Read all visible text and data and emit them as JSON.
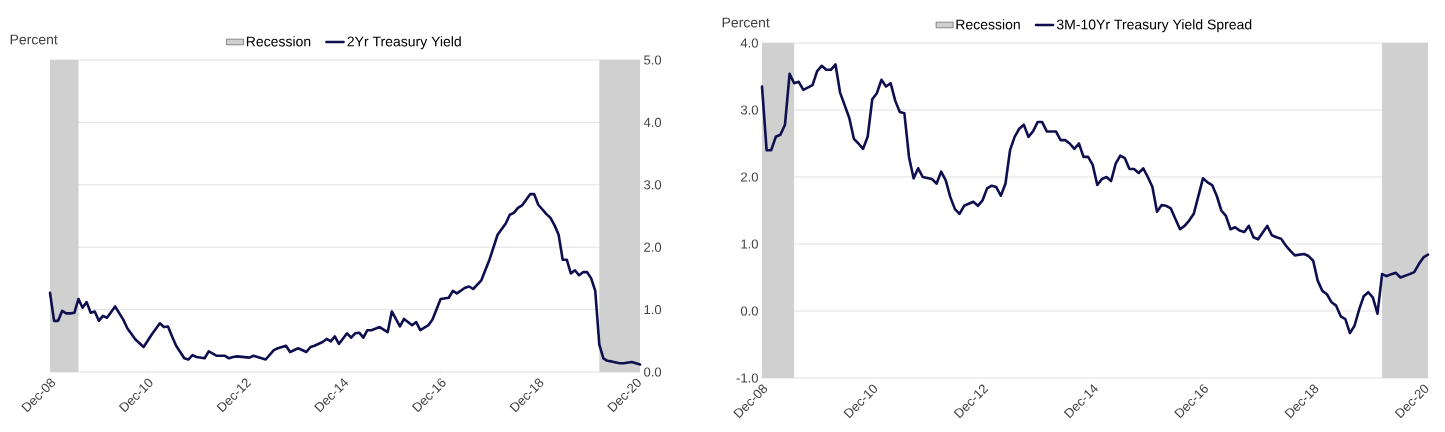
{
  "chart_data": [
    {
      "type": "line",
      "ylabel": "Percent",
      "legend": "top",
      "grid": "y",
      "xlim": [
        "2008-12",
        "2021-01"
      ],
      "xticks": [
        {
          "value": "2008-12",
          "label": "Dec-08"
        },
        {
          "value": "2010-12",
          "label": "Dec-10"
        },
        {
          "value": "2012-12",
          "label": "Dec-12"
        },
        {
          "value": "2014-12",
          "label": "Dec-14"
        },
        {
          "value": "2016-12",
          "label": "Dec-16"
        },
        {
          "value": "2018-12",
          "label": "Dec-18"
        },
        {
          "value": "2020-12",
          "label": "Dec-20"
        }
      ],
      "ylim": [
        0,
        5
      ],
      "yticks": [
        {
          "value": 0,
          "label": "0.0"
        },
        {
          "value": 1,
          "label": "1.0"
        },
        {
          "value": 2,
          "label": "2.0"
        },
        {
          "value": 3,
          "label": "3.0"
        },
        {
          "value": 4,
          "label": "4.0"
        },
        {
          "value": 5,
          "label": "5.0"
        }
      ],
      "bands": [
        {
          "axis": "x",
          "from": "2008-12",
          "to": "2009-07",
          "label": "Recession",
          "color": "#d0d0d0"
        },
        {
          "axis": "x",
          "from": "2020-03",
          "to": "2021-01",
          "color": "#d0d0d0"
        }
      ],
      "series": [
        {
          "name": "2Yr Treasury Yield",
          "color": "#0f0f4f",
          "x": [
            "2008-12",
            "2009-01",
            "2009-02",
            "2009-03",
            "2009-04",
            "2009-05",
            "2009-06",
            "2009-07",
            "2009-08",
            "2009-09",
            "2009-10",
            "2009-11",
            "2009-12",
            "2010-01",
            "2010-02",
            "2010-04",
            "2010-06",
            "2010-07",
            "2010-09",
            "2010-11",
            "2011-01",
            "2011-03",
            "2011-04",
            "2011-05",
            "2011-06",
            "2011-07",
            "2011-09",
            "2011-10",
            "2011-11",
            "2011-12",
            "2012-02",
            "2012-03",
            "2012-05",
            "2012-07",
            "2012-08",
            "2012-09",
            "2012-10",
            "2013-01",
            "2013-02",
            "2013-05",
            "2013-07",
            "2013-08",
            "2013-10",
            "2013-11",
            "2014-01",
            "2014-03",
            "2014-04",
            "2014-05",
            "2014-07",
            "2014-08",
            "2014-09",
            "2014-10",
            "2014-11",
            "2015-01",
            "2015-02",
            "2015-03",
            "2015-04",
            "2015-05",
            "2015-06",
            "2015-07",
            "2015-09",
            "2015-11",
            "2015-12",
            "2016-01",
            "2016-02",
            "2016-03",
            "2016-05",
            "2016-06",
            "2016-07",
            "2016-09",
            "2016-10",
            "2016-12",
            "2017-02",
            "2017-03",
            "2017-04",
            "2017-06",
            "2017-07",
            "2017-08",
            "2017-10",
            "2017-12",
            "2018-02",
            "2018-04",
            "2018-05",
            "2018-06",
            "2018-07",
            "2018-08",
            "2018-10",
            "2018-11",
            "2018-12",
            "2019-02",
            "2019-03",
            "2019-04",
            "2019-05",
            "2019-06",
            "2019-07",
            "2019-08",
            "2019-09",
            "2019-10",
            "2019-11",
            "2019-12",
            "2020-01",
            "2020-02",
            "2020-03",
            "2020-04",
            "2020-05",
            "2020-06",
            "2020-08",
            "2020-09",
            "2020-11",
            "2021-01"
          ],
          "values": [
            1.27,
            0.82,
            0.82,
            0.98,
            0.94,
            0.94,
            0.95,
            1.17,
            1.03,
            1.12,
            0.95,
            0.97,
            0.82,
            0.9,
            0.87,
            1.05,
            0.84,
            0.7,
            0.52,
            0.4,
            0.6,
            0.78,
            0.72,
            0.73,
            0.57,
            0.42,
            0.22,
            0.2,
            0.27,
            0.24,
            0.22,
            0.33,
            0.26,
            0.26,
            0.22,
            0.24,
            0.25,
            0.23,
            0.26,
            0.2,
            0.35,
            0.38,
            0.42,
            0.32,
            0.38,
            0.32,
            0.4,
            0.42,
            0.48,
            0.53,
            0.49,
            0.57,
            0.45,
            0.62,
            0.55,
            0.62,
            0.63,
            0.55,
            0.67,
            0.67,
            0.72,
            0.64,
            0.97,
            0.85,
            0.73,
            0.85,
            0.75,
            0.8,
            0.67,
            0.75,
            0.84,
            1.17,
            1.19,
            1.3,
            1.26,
            1.35,
            1.37,
            1.33,
            1.47,
            1.8,
            2.2,
            2.38,
            2.52,
            2.55,
            2.63,
            2.67,
            2.85,
            2.85,
            2.68,
            2.53,
            2.47,
            2.35,
            2.2,
            1.8,
            1.8,
            1.58,
            1.63,
            1.55,
            1.6,
            1.6,
            1.5,
            1.3,
            0.44,
            0.22,
            0.18,
            0.17,
            0.14,
            0.14,
            0.16,
            0.12
          ]
        }
      ]
    },
    {
      "type": "line",
      "ylabel": "Percent",
      "legend": "top",
      "grid": "y",
      "xlim": [
        "2008-12",
        "2021-01"
      ],
      "xticks": [
        {
          "value": "2008-12",
          "label": "Dec-08"
        },
        {
          "value": "2010-12",
          "label": "Dec-10"
        },
        {
          "value": "2012-12",
          "label": "Dec-12"
        },
        {
          "value": "2014-12",
          "label": "Dec-14"
        },
        {
          "value": "2016-12",
          "label": "Dec-16"
        },
        {
          "value": "2018-12",
          "label": "Dec-18"
        },
        {
          "value": "2020-12",
          "label": "Dec-20"
        }
      ],
      "ylim": [
        -1,
        4
      ],
      "yticks": [
        {
          "value": -1,
          "label": "-1.0"
        },
        {
          "value": 0,
          "label": "0.0"
        },
        {
          "value": 1,
          "label": "1.0"
        },
        {
          "value": 2,
          "label": "2.0"
        },
        {
          "value": 3,
          "label": "3.0"
        },
        {
          "value": 4,
          "label": "4.0"
        }
      ],
      "bands": [
        {
          "axis": "x",
          "from": "2008-12",
          "to": "2009-07",
          "label": "Recession",
          "color": "#d0d0d0"
        },
        {
          "axis": "x",
          "from": "2020-03",
          "to": "2021-01",
          "color": "#d0d0d0"
        }
      ],
      "series": [
        {
          "name": "3M-10Yr Treasury Yield Spread",
          "color": "#0f0f4f",
          "x": [
            "2008-12",
            "2009-01",
            "2009-02",
            "2009-03",
            "2009-04",
            "2009-05",
            "2009-06",
            "2009-07",
            "2009-08",
            "2009-09",
            "2009-11",
            "2009-12",
            "2010-01",
            "2010-02",
            "2010-03",
            "2010-04",
            "2010-05",
            "2010-07",
            "2010-08",
            "2010-09",
            "2010-10",
            "2010-11",
            "2010-12",
            "2011-01",
            "2011-02",
            "2011-03",
            "2011-04",
            "2011-05",
            "2011-06",
            "2011-07",
            "2011-08",
            "2011-09",
            "2011-10",
            "2011-11",
            "2012-01",
            "2012-02",
            "2012-03",
            "2012-04",
            "2012-05",
            "2012-06",
            "2012-07",
            "2012-08",
            "2012-10",
            "2012-11",
            "2012-12",
            "2013-01",
            "2013-02",
            "2013-03",
            "2013-04",
            "2013-05",
            "2013-06",
            "2013-07",
            "2013-08",
            "2013-09",
            "2013-10",
            "2013-11",
            "2013-12",
            "2014-01",
            "2014-02",
            "2014-04",
            "2014-05",
            "2014-06",
            "2014-07",
            "2014-08",
            "2014-09",
            "2014-10",
            "2014-11",
            "2014-12",
            "2015-01",
            "2015-02",
            "2015-03",
            "2015-04",
            "2015-05",
            "2015-06",
            "2015-07",
            "2015-08",
            "2015-09",
            "2015-10",
            "2015-11",
            "2015-12",
            "2016-01",
            "2016-02",
            "2016-03",
            "2016-04",
            "2016-05",
            "2016-07",
            "2016-08",
            "2016-09",
            "2016-10",
            "2016-12",
            "2017-01",
            "2017-02",
            "2017-03",
            "2017-04",
            "2017-05",
            "2017-06",
            "2017-07",
            "2017-08",
            "2017-09",
            "2017-10",
            "2017-11",
            "2017-12",
            "2018-02",
            "2018-03",
            "2018-04",
            "2018-05",
            "2018-06",
            "2018-07",
            "2018-08",
            "2018-10",
            "2018-11",
            "2018-12",
            "2019-01",
            "2019-02",
            "2019-03",
            "2019-04",
            "2019-05",
            "2019-06",
            "2019-07",
            "2019-08",
            "2019-09",
            "2019-10",
            "2019-11",
            "2019-12",
            "2020-01",
            "2020-02",
            "2020-03",
            "2020-04",
            "2020-05",
            "2020-06",
            "2020-07",
            "2020-09",
            "2020-10",
            "2020-11",
            "2020-12",
            "2021-01"
          ],
          "values": [
            3.35,
            2.4,
            2.4,
            2.6,
            2.63,
            2.78,
            3.54,
            3.4,
            3.42,
            3.3,
            3.37,
            3.58,
            3.66,
            3.6,
            3.6,
            3.68,
            3.26,
            2.88,
            2.57,
            2.5,
            2.42,
            2.6,
            3.16,
            3.25,
            3.45,
            3.35,
            3.4,
            3.14,
            2.97,
            2.95,
            2.3,
            1.98,
            2.13,
            2.0,
            1.97,
            1.9,
            2.08,
            1.95,
            1.7,
            1.52,
            1.45,
            1.57,
            1.63,
            1.57,
            1.65,
            1.83,
            1.87,
            1.85,
            1.72,
            1.9,
            2.4,
            2.6,
            2.72,
            2.78,
            2.6,
            2.68,
            2.82,
            2.82,
            2.68,
            2.68,
            2.55,
            2.55,
            2.5,
            2.42,
            2.5,
            2.3,
            2.3,
            2.18,
            1.88,
            1.97,
            2.0,
            1.94,
            2.2,
            2.32,
            2.28,
            2.12,
            2.12,
            2.06,
            2.13,
            2.0,
            1.85,
            1.48,
            1.58,
            1.57,
            1.53,
            1.22,
            1.27,
            1.35,
            1.45,
            1.98,
            1.92,
            1.88,
            1.72,
            1.5,
            1.42,
            1.22,
            1.25,
            1.2,
            1.18,
            1.27,
            1.1,
            1.07,
            1.27,
            1.13,
            1.1,
            1.08,
            0.98,
            0.9,
            0.83,
            0.85,
            0.82,
            0.75,
            0.45,
            0.3,
            0.25,
            0.13,
            0.08,
            -0.08,
            -0.12,
            -0.33,
            -0.22,
            0.02,
            0.22,
            0.28,
            0.2,
            -0.04,
            0.55,
            0.52,
            0.55,
            0.57,
            0.5,
            0.55,
            0.58,
            0.7,
            0.8,
            0.84
          ]
        }
      ]
    }
  ]
}
